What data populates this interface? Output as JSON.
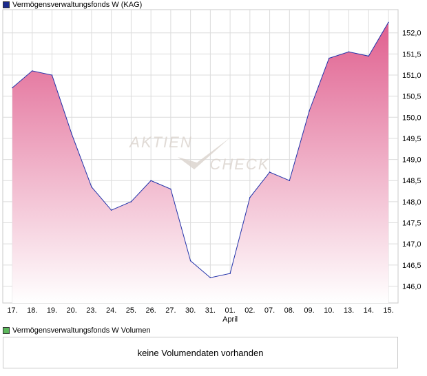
{
  "price_legend": {
    "label": "Vermögensverwaltungsfonds W (KAG)",
    "color": "#1a2a8c"
  },
  "volume_legend": {
    "label": "Vermögensverwaltungsfonds W Volumen",
    "color": "#5cb85c"
  },
  "volume_panel": {
    "message": "keine Volumendaten vorhanden"
  },
  "watermark": {
    "line1": "AKTIEN",
    "line2": "CHECK"
  },
  "chart_data": {
    "type": "area",
    "categories": [
      "17.",
      "18.",
      "19.",
      "20.",
      "23.",
      "24.",
      "25.",
      "26.",
      "27.",
      "30.",
      "31.",
      "01.",
      "02.",
      "07.",
      "08.",
      "09.",
      "10.",
      "13.",
      "14.",
      "15."
    ],
    "category_sublabels": {
      "01.": "April"
    },
    "series": [
      {
        "name": "Vermögensverwaltungsfonds W (KAG)",
        "values": [
          150.7,
          151.1,
          151.0,
          149.6,
          148.35,
          147.8,
          148.0,
          148.5,
          148.3,
          146.6,
          146.2,
          146.3,
          148.1,
          148.7,
          148.5,
          150.15,
          151.4,
          151.55,
          151.45,
          152.25
        ]
      }
    ],
    "yticks": [
      146.0,
      146.5,
      147.0,
      147.5,
      148.0,
      148.5,
      149.0,
      149.5,
      150.0,
      150.5,
      151.0,
      151.5,
      152.0
    ],
    "ytick_labels": [
      "146,0",
      "146,5",
      "147,0",
      "147,5",
      "148,0",
      "148,5",
      "149,0",
      "149,5",
      "150,0",
      "150,5",
      "151,0",
      "151,5",
      "152,0"
    ],
    "ylim": [
      145.6,
      152.55
    ],
    "grid": true,
    "line_color": "#2233aa",
    "fill_top_color": "#e0608f",
    "fill_bottom_color": "#ffffff"
  }
}
